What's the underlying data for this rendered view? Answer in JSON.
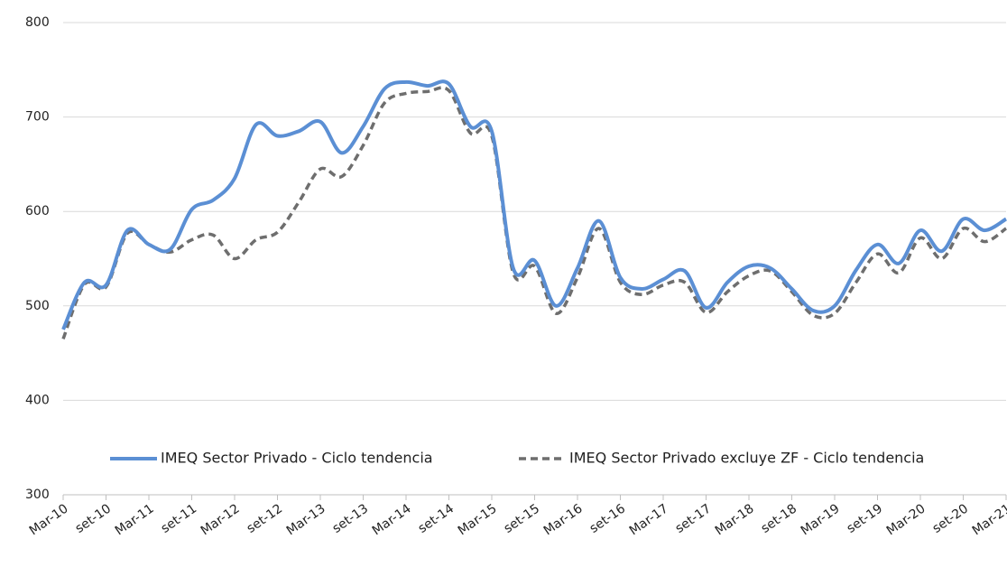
{
  "chart_data": {
    "type": "line",
    "categories": [
      "Mar-10",
      null,
      "set-10",
      null,
      "Mar-11",
      null,
      "set-11",
      null,
      "Mar-12",
      null,
      "set-12",
      null,
      "Mar-13",
      null,
      "set-13",
      null,
      "Mar-14",
      null,
      "set-14",
      null,
      "Mar-15",
      null,
      "set-15",
      null,
      "Mar-16",
      null,
      "set-16",
      null,
      "Mar-17",
      null,
      "set-17",
      null,
      "Mar-18",
      null,
      "set-18",
      null,
      "Mar-19",
      null,
      "set-19",
      null,
      "Mar-20",
      null,
      "set-20",
      null,
      "Mar-21"
    ],
    "series": [
      {
        "name": "IMEQ Sector Privado - Ciclo tendencia",
        "color": "#5b8fd4",
        "dashed": false,
        "values": [
          475,
          525,
          522,
          580,
          565,
          560,
          602,
          612,
          635,
          692,
          680,
          685,
          695,
          662,
          690,
          730,
          737,
          733,
          735,
          690,
          685,
          540,
          548,
          500,
          540,
          590,
          530,
          518,
          528,
          537,
          498,
          525,
          542,
          540,
          518,
          495,
          500,
          538,
          565,
          545,
          580,
          558,
          592,
          580,
          592
        ]
      },
      {
        "name": "IMEQ Sector Privado excluye ZF - Ciclo tendencia",
        "color": "#6e6e6e",
        "dashed": true,
        "values": [
          465,
          523,
          520,
          577,
          565,
          557,
          570,
          575,
          550,
          570,
          578,
          610,
          645,
          637,
          670,
          715,
          725,
          727,
          728,
          683,
          680,
          535,
          542,
          492,
          530,
          582,
          525,
          512,
          522,
          525,
          493,
          515,
          532,
          537,
          515,
          490,
          492,
          525,
          555,
          535,
          572,
          550,
          582,
          568,
          582
        ]
      }
    ],
    "ylim": [
      300,
      800
    ],
    "yticks": [
      300,
      400,
      500,
      600,
      700,
      800
    ],
    "grid": true,
    "legend": "bottom"
  }
}
